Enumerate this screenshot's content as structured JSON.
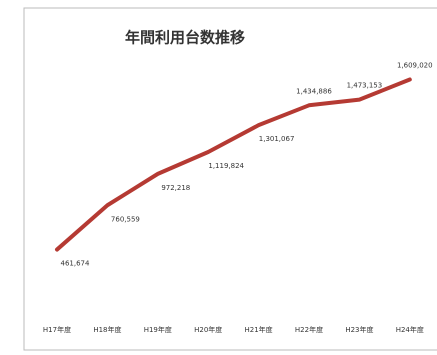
{
  "chart_data": {
    "type": "line",
    "title": "年間利用台数推移",
    "categories": [
      "H17年度",
      "H18年度",
      "H19年度",
      "H20年度",
      "H21年度",
      "H22年度",
      "H23年度",
      "H24年度"
    ],
    "series": [
      {
        "color": "#b53a33",
        "values": [
          461674,
          760559,
          972218,
          1119824,
          1301067,
          1434886,
          1473153,
          1609020
        ],
        "value_labels": [
          "461,674",
          "760,559",
          "972,218",
          "1,119,824",
          "1,301,067",
          "1,434,886",
          "1,473,153",
          "1,609,020"
        ]
      }
    ],
    "ylim": [
      0,
      1700000
    ]
  }
}
